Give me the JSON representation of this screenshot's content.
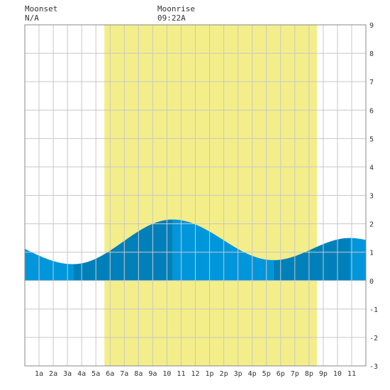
{
  "header": {
    "moonset_label": "Moonset",
    "moonset_time": "N/A",
    "moonrise_label": "Moonrise",
    "moonrise_time": "09:22A"
  },
  "chart_data": {
    "type": "area",
    "title": "",
    "xlabel": "",
    "ylabel": "",
    "xlim": [
      0,
      24
    ],
    "ylim": [
      -3,
      9
    ],
    "grid": true,
    "y_ticks": [
      -3,
      -2,
      -1,
      0,
      1,
      2,
      3,
      4,
      5,
      6,
      7,
      8,
      9
    ],
    "x_ticks": [
      {
        "hour": 1,
        "label": "1a"
      },
      {
        "hour": 2,
        "label": "2a"
      },
      {
        "hour": 3,
        "label": "3a"
      },
      {
        "hour": 4,
        "label": "4a"
      },
      {
        "hour": 5,
        "label": "5a"
      },
      {
        "hour": 6,
        "label": "6a"
      },
      {
        "hour": 7,
        "label": "7a"
      },
      {
        "hour": 8,
        "label": "8a"
      },
      {
        "hour": 9,
        "label": "9a"
      },
      {
        "hour": 10,
        "label": "10"
      },
      {
        "hour": 11,
        "label": "11"
      },
      {
        "hour": 12,
        "label": "12"
      },
      {
        "hour": 13,
        "label": "1p"
      },
      {
        "hour": 14,
        "label": "2p"
      },
      {
        "hour": 15,
        "label": "3p"
      },
      {
        "hour": 16,
        "label": "4p"
      },
      {
        "hour": 17,
        "label": "5p"
      },
      {
        "hour": 18,
        "label": "6p"
      },
      {
        "hour": 19,
        "label": "7p"
      },
      {
        "hour": 20,
        "label": "8p"
      },
      {
        "hour": 21,
        "label": "9p"
      },
      {
        "hour": 22,
        "label": "10"
      },
      {
        "hour": 23,
        "label": "11"
      }
    ],
    "daylight": {
      "start_hour": 5.6,
      "end_hour": 20.55
    },
    "tide_extremes": [
      {
        "hour": 3.4,
        "height": 0.58,
        "kind": "low"
      },
      {
        "hour": 10.4,
        "height": 2.15,
        "kind": "high"
      },
      {
        "hour": 17.5,
        "height": 0.72,
        "kind": "low"
      },
      {
        "hour": 22.9,
        "height": 1.5,
        "kind": "high"
      }
    ],
    "tide_start_height": 1.12,
    "tide_end_height": 1.43,
    "colors": {
      "daylight": "#f3ee89",
      "tide_light": "#0096dc",
      "tide_dark": "#0080ba",
      "grid": "#c8c8c8",
      "border": "#888888"
    }
  }
}
